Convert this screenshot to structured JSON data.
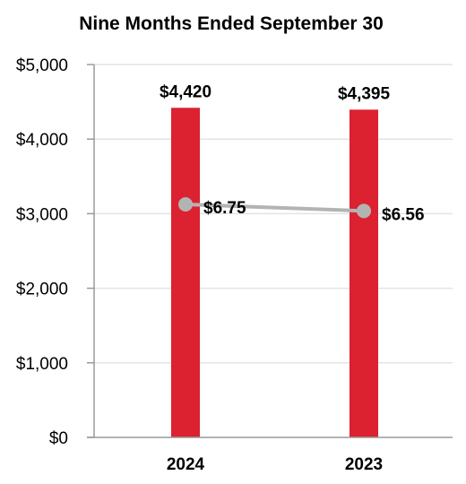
{
  "chart_data": {
    "type": "bar",
    "title": "Nine Months Ended September 30",
    "xlabel": "",
    "ylabel": "",
    "categories": [
      "2024",
      "2023"
    ],
    "ylim": [
      0,
      5000
    ],
    "yticks": [
      0,
      1000,
      2000,
      3000,
      4000,
      5000
    ],
    "ytick_labels": [
      "$0",
      "$1,000",
      "$2,000",
      "$3,000",
      "$4,000",
      "$5,000"
    ],
    "grid": true,
    "series": [
      {
        "type": "bar",
        "values": [
          4420,
          4395
        ],
        "labels": [
          "$4,420",
          "$4,395"
        ],
        "color": "#dc2131"
      },
      {
        "type": "line",
        "values": [
          6.75,
          6.56
        ],
        "labels": [
          "$6.75",
          "$6.56"
        ],
        "color": "#b3b3b3"
      }
    ],
    "secondary_axis_range": [
      0,
      10.8
    ]
  }
}
